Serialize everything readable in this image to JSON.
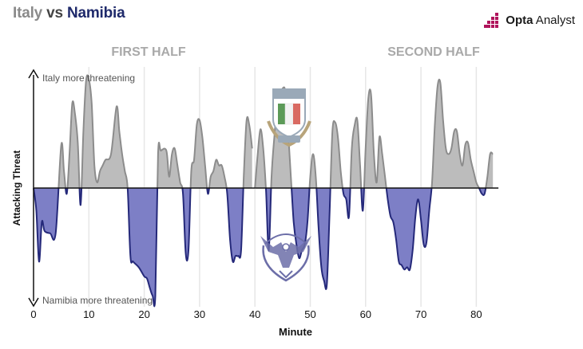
{
  "header": {
    "team_a": "Italy",
    "vs": "vs",
    "team_b": "Namibia",
    "brand_bold": "Opta",
    "brand_rest": " Analyst"
  },
  "colors": {
    "italy_fill": "#bcbcbc",
    "italy_stroke": "#8c8c8c",
    "namibia_fill": "#7d7fc6",
    "namibia_stroke": "#25297a",
    "brand_accent": "#b0135b"
  },
  "icons": [
    "opta-logo-icon",
    "italy-rugby-crest-icon",
    "namibia-rugby-crest-icon"
  ],
  "chart_data": {
    "type": "area",
    "title": "Italy vs Namibia",
    "xlabel": "Minute",
    "ylabel": "Attacking Threat",
    "xlim": [
      0,
      84
    ],
    "ylim": [
      -1,
      1
    ],
    "xticks": [
      0,
      10,
      20,
      30,
      40,
      50,
      60,
      70,
      80
    ],
    "grid": true,
    "panels": [
      {
        "label": "FIRST HALF",
        "xlim": [
          0,
          40
        ]
      },
      {
        "label": "SECOND HALF",
        "xlim": [
          40,
          84
        ]
      }
    ],
    "annotations": {
      "top": "Italy more threatening",
      "bottom": "Namibia more threatening"
    },
    "series": [
      {
        "half": "first",
        "x": [
          0,
          0.5,
          1,
          1.5,
          2,
          3,
          4,
          5,
          5.5,
          6,
          6.5,
          7,
          7.5,
          8,
          8.5,
          9,
          9.5,
          10,
          10.5,
          11,
          11.5,
          12,
          12.5,
          13,
          14,
          15,
          15.5,
          16,
          16.5,
          17,
          17.5,
          18,
          19,
          20,
          20.5,
          21,
          21.5,
          22,
          22.5,
          23,
          24,
          24.5,
          25,
          25.5,
          26,
          26.5,
          27,
          27.5,
          28,
          28.5,
          29,
          29.5,
          30,
          30.5,
          31,
          31.5,
          32,
          32.5,
          33,
          33.5,
          34,
          34.5,
          35,
          35.5,
          36,
          36.5,
          37,
          37.5,
          38,
          38.5,
          39,
          39.5
        ],
        "values": [
          0,
          -0.2,
          -0.65,
          -0.3,
          -0.38,
          -0.4,
          -0.4,
          0.38,
          0.15,
          -0.05,
          0.3,
          0.75,
          0.65,
          0.4,
          -0.15,
          0.5,
          0.95,
          0.96,
          0.75,
          0.2,
          0.05,
          0.15,
          0.2,
          0.25,
          0.3,
          0.72,
          0.5,
          0.3,
          0.15,
          0,
          -0.6,
          -0.65,
          -0.7,
          -0.78,
          -0.8,
          -0.88,
          -0.95,
          -0.95,
          0.3,
          0.33,
          0.33,
          0.1,
          0.3,
          0.35,
          0.2,
          0.05,
          -0.05,
          -0.58,
          -0.55,
          0.15,
          0.25,
          0.56,
          0.6,
          0.45,
          0.2,
          -0.05,
          0.1,
          0.15,
          0.25,
          0.2,
          0.2,
          0.1,
          -0.05,
          -0.45,
          -0.65,
          -0.6,
          -0.6,
          -0.55,
          0.12,
          0.6,
          0.55,
          0.35
        ]
      },
      {
        "half": "second",
        "x": [
          40,
          40.5,
          41,
          41.5,
          42,
          42.5,
          43,
          43.5,
          44,
          44.5,
          45,
          45.5,
          46,
          46.5,
          47,
          47.5,
          48,
          48.5,
          49,
          49.5,
          50,
          50.5,
          51,
          51.5,
          52,
          52.5,
          53,
          53.5,
          54,
          54.5,
          55,
          55.5,
          56,
          56.5,
          57,
          57.5,
          58,
          58.5,
          59,
          59.5,
          60,
          60.5,
          61,
          61.5,
          62,
          62.5,
          63,
          63.5,
          64,
          64.5,
          65,
          65.5,
          66,
          66.5,
          67,
          67.5,
          68,
          68.5,
          69,
          69.5,
          70,
          70.5,
          71,
          71.5,
          72,
          72.5,
          73,
          73.5,
          74,
          74.5,
          75,
          75.5,
          76,
          76.5,
          77,
          77.5,
          78,
          78.5,
          79,
          79.5,
          80,
          80.5,
          81,
          81.5,
          82,
          82.5,
          83
        ],
        "values": [
          0,
          0.3,
          0.52,
          0.35,
          -0.02,
          -0.55,
          0.1,
          0.45,
          0.72,
          0.82,
          0.88,
          0.85,
          0.5,
          0.1,
          -0.3,
          -0.5,
          -0.62,
          -0.55,
          -0.5,
          -0.3,
          0.1,
          0.3,
          0.1,
          -0.35,
          -0.7,
          -0.82,
          -0.85,
          -0.2,
          0.5,
          0.58,
          0.45,
          0.15,
          -0.05,
          -0.1,
          -0.25,
          0.35,
          0.55,
          0.6,
          0.2,
          -0.2,
          0.35,
          0.8,
          0.82,
          0.3,
          0.05,
          0.45,
          0.3,
          0.1,
          -0.1,
          -0.25,
          -0.3,
          -0.45,
          -0.65,
          -0.68,
          -0.72,
          -0.7,
          -0.72,
          -0.55,
          -0.25,
          -0.1,
          -0.28,
          -0.5,
          -0.48,
          -0.2,
          0.05,
          0.55,
          0.9,
          0.93,
          0.6,
          0.35,
          0.3,
          0.35,
          0.5,
          0.5,
          0.3,
          0.2,
          0.38,
          0.4,
          0.25,
          0.15,
          0.05,
          0,
          -0.05,
          -0.05,
          0.1,
          0.3,
          0.3
        ]
      }
    ]
  }
}
